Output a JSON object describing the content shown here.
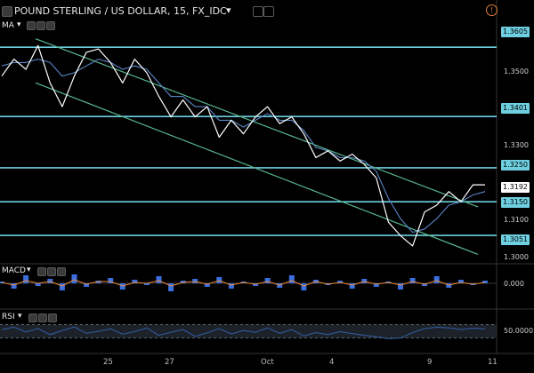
{
  "header": {
    "symbol_title": "POUND STERLING / US DOLLAR, 15, FX_IDC",
    "ma_label": "MA",
    "macd_label": "MACD",
    "rsi_label": "RSI",
    "alert_icon": "exclamation-circle-icon"
  },
  "colors": {
    "background": "#000000",
    "price_line": "#ffffff",
    "ma_line": "#5b86c6",
    "channel": "#58b98f",
    "hline": "#6ecfe0",
    "macd_hist": "#3a6fe0",
    "macd_signal": "#e8883a",
    "rsi_line": "#2f5a9c",
    "rsi_band": "#2a2f3a"
  },
  "chart_data": {
    "type": "line",
    "title": "POUND STERLING / US DOLLAR, 15, FX_IDC",
    "x_ticks": [
      "25",
      "27",
      "Oct",
      "4",
      "9",
      "11"
    ],
    "y_ticks": [
      "1.3500",
      "1.3300",
      "1.3100",
      "1.3000"
    ],
    "ylim": [
      1.297,
      1.365
    ],
    "current_price": "1.3192",
    "horizontal_levels": [
      "1.3605",
      "1.3401",
      "1.3250",
      "1.3150",
      "1.3051"
    ],
    "price_series": [
      1.352,
      1.357,
      1.354,
      1.361,
      1.35,
      1.343,
      1.352,
      1.359,
      1.36,
      1.356,
      1.35,
      1.357,
      1.353,
      1.346,
      1.34,
      1.345,
      1.34,
      1.343,
      1.334,
      1.339,
      1.335,
      1.34,
      1.343,
      1.338,
      1.34,
      1.335,
      1.328,
      1.33,
      1.327,
      1.329,
      1.326,
      1.322,
      1.309,
      1.305,
      1.302,
      1.312,
      1.314,
      1.318,
      1.315,
      1.32,
      1.32
    ],
    "ma_series": [
      1.355,
      1.356,
      1.356,
      1.357,
      1.356,
      1.352,
      1.353,
      1.355,
      1.357,
      1.356,
      1.354,
      1.355,
      1.354,
      1.35,
      1.346,
      1.346,
      1.343,
      1.343,
      1.339,
      1.339,
      1.337,
      1.339,
      1.341,
      1.339,
      1.339,
      1.336,
      1.331,
      1.33,
      1.328,
      1.328,
      1.327,
      1.324,
      1.316,
      1.31,
      1.306,
      1.307,
      1.31,
      1.314,
      1.315,
      1.317,
      1.318
    ],
    "channel_upper": [
      [
        1.363,
        0
      ],
      [
        1.3135,
        1
      ]
    ],
    "channel_lower": [
      [
        1.35,
        0
      ],
      [
        1.2995,
        1
      ]
    ],
    "macd": {
      "axis_label": "0.000",
      "histogram": [
        0.2,
        -0.6,
        0.9,
        -0.3,
        0.5,
        -0.8,
        1.0,
        -0.4,
        0.3,
        0.6,
        -0.7,
        0.4,
        -0.2,
        0.8,
        -0.9,
        0.3,
        0.5,
        -0.4,
        0.7,
        -0.6,
        0.2,
        -0.3,
        0.6,
        -0.5,
        0.9,
        -0.8,
        0.4,
        -0.2,
        0.3,
        -0.6,
        0.5,
        -0.4,
        0.2,
        -0.7,
        0.6,
        -0.3,
        0.8,
        -0.5,
        0.4,
        -0.2,
        0.3
      ],
      "signal": [
        0.1,
        -0.2,
        0.3,
        0.0,
        0.2,
        -0.3,
        0.4,
        -0.1,
        0.2,
        0.2,
        -0.3,
        0.1,
        0.0,
        0.3,
        -0.3,
        0.1,
        0.2,
        -0.1,
        0.3,
        -0.2,
        0.1,
        -0.1,
        0.2,
        -0.2,
        0.3,
        -0.3,
        0.2,
        -0.1,
        0.1,
        -0.2,
        0.2,
        -0.1,
        0.1,
        -0.2,
        0.2,
        -0.1,
        0.3,
        -0.2,
        0.1,
        -0.1,
        0.1
      ]
    },
    "rsi": {
      "axis_label": "50.0000",
      "band": [
        30,
        70
      ],
      "values": [
        55,
        62,
        48,
        58,
        40,
        52,
        63,
        44,
        50,
        57,
        41,
        49,
        60,
        38,
        47,
        55,
        35,
        45,
        58,
        42,
        52,
        47,
        60,
        44,
        55,
        36,
        46,
        40,
        49,
        43,
        38,
        34,
        28,
        30,
        46,
        58,
        62,
        60,
        55,
        59,
        57
      ]
    },
    "grid": false
  }
}
